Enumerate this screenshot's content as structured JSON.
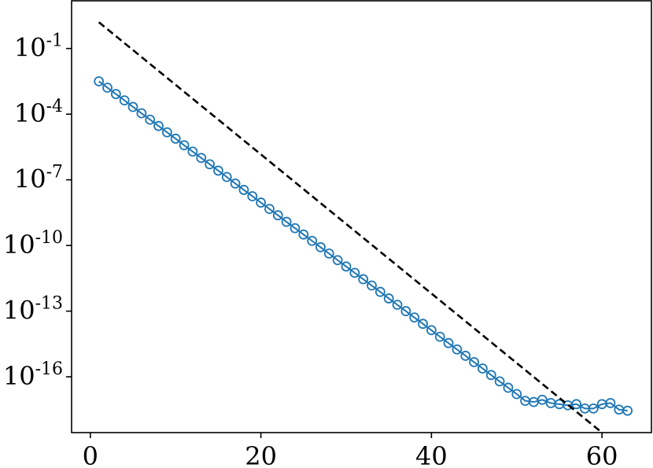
{
  "chart_data": {
    "type": "scatter",
    "title": "",
    "xlabel": "",
    "ylabel": "",
    "xlim": [
      -2.2,
      65.8
    ],
    "ylim_log10": [
      -18.55,
      1.18
    ],
    "yscale": "log",
    "grid": false,
    "x_ticks": [
      {
        "value": 0,
        "label": "0"
      },
      {
        "value": 20,
        "label": "20"
      },
      {
        "value": 40,
        "label": "40"
      },
      {
        "value": 60,
        "label": "60"
      }
    ],
    "y_ticks": [
      {
        "log10": -1,
        "base": "10",
        "exp": "-1"
      },
      {
        "log10": -4,
        "base": "10",
        "exp": "-4"
      },
      {
        "log10": -7,
        "base": "10",
        "exp": "-7"
      },
      {
        "log10": -10,
        "base": "10",
        "exp": "-10"
      },
      {
        "log10": -13,
        "base": "10",
        "exp": "-13"
      },
      {
        "log10": -16,
        "base": "10",
        "exp": "-16"
      }
    ],
    "series": [
      {
        "style": "line-with-circle-markers",
        "color": "#1f77b4",
        "x": [
          1,
          2,
          3,
          4,
          5,
          6,
          7,
          8,
          9,
          10,
          11,
          12,
          13,
          14,
          15,
          16,
          17,
          18,
          19,
          20,
          21,
          22,
          23,
          24,
          25,
          26,
          27,
          28,
          29,
          30,
          31,
          32,
          33,
          34,
          35,
          36,
          37,
          38,
          39,
          40,
          41,
          42,
          43,
          44,
          45,
          46,
          47,
          48,
          49,
          50,
          51,
          52,
          53,
          54,
          55,
          56,
          57,
          58,
          59,
          60,
          61,
          62,
          63
        ],
        "log10_y": [
          -2.5,
          -2.79,
          -3.08,
          -3.37,
          -3.67,
          -3.96,
          -4.25,
          -4.54,
          -4.83,
          -5.12,
          -5.42,
          -5.71,
          -6.0,
          -6.29,
          -6.58,
          -6.87,
          -7.17,
          -7.46,
          -7.75,
          -8.04,
          -8.33,
          -8.62,
          -8.92,
          -9.21,
          -9.5,
          -9.79,
          -10.08,
          -10.37,
          -10.67,
          -10.96,
          -11.25,
          -11.54,
          -11.83,
          -12.12,
          -12.42,
          -12.71,
          -13.0,
          -13.29,
          -13.58,
          -13.87,
          -14.17,
          -14.46,
          -14.75,
          -15.04,
          -15.33,
          -15.62,
          -15.92,
          -16.21,
          -16.5,
          -16.79,
          -17.1,
          -17.15,
          -17.05,
          -17.2,
          -17.25,
          -17.3,
          -17.25,
          -17.45,
          -17.45,
          -17.25,
          -17.2,
          -17.5,
          -17.55
        ]
      },
      {
        "style": "dashed-line",
        "color": "#000000",
        "x": [
          1,
          60
        ],
        "log10_y": [
          0.2,
          -18.55
        ]
      }
    ]
  }
}
